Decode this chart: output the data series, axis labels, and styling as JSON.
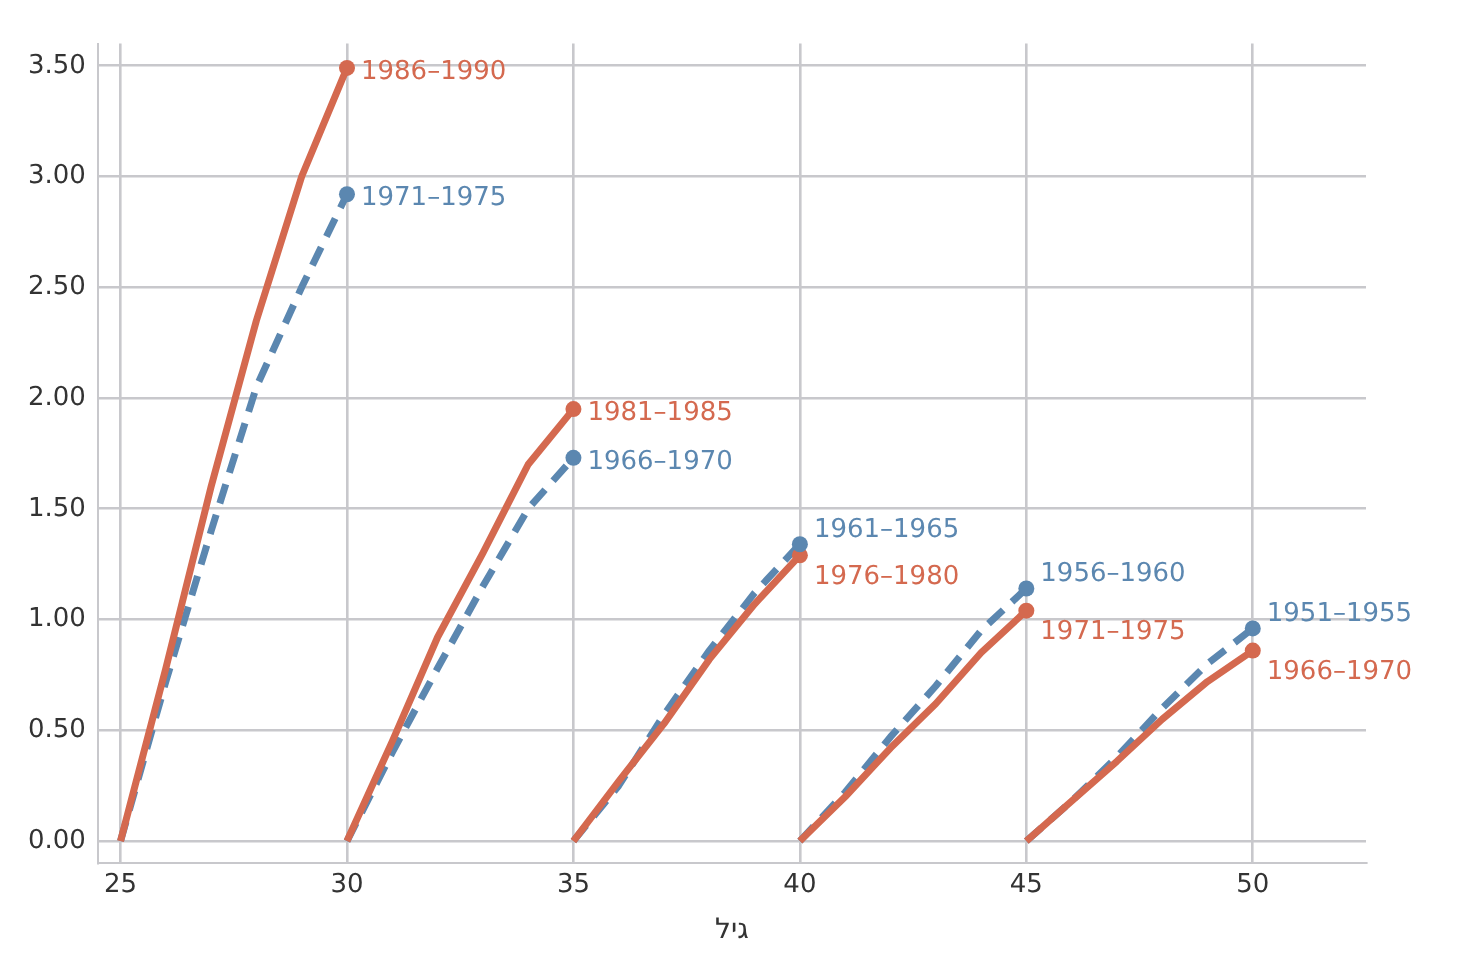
{
  "chart_data": {
    "type": "line",
    "xlabel": "גיל",
    "xlim": [
      24.5,
      52.5
    ],
    "ylim": [
      -0.1,
      3.6
    ],
    "xticks": [
      25,
      30,
      35,
      40,
      45,
      50
    ],
    "yticks": [
      {
        "value": 0,
        "label": "0.00"
      },
      {
        "value": 0.5,
        "label": "0.50"
      },
      {
        "value": 1,
        "label": "1.00"
      },
      {
        "value": 1.5,
        "label": "1.50"
      },
      {
        "value": 2,
        "label": "2.00"
      },
      {
        "value": 2.5,
        "label": "2.50"
      },
      {
        "value": 3,
        "label": "3.00"
      },
      {
        "value": 3.5,
        "label": "3.50"
      }
    ],
    "grid": true,
    "legend": false,
    "marker": "none",
    "series": [
      {
        "name": "1986–1990",
        "color": "#d4694f",
        "line_style": "solid",
        "x": [
          25,
          26,
          27,
          28,
          29,
          30
        ],
        "values": [
          0,
          0.78,
          1.6,
          2.35,
          3.0,
          3.49
        ]
      },
      {
        "name": "1971–1975",
        "color": "#5b87b0",
        "line_style": "dashed",
        "x": [
          25,
          26,
          27,
          28,
          29,
          30
        ],
        "values": [
          0,
          0.72,
          1.4,
          2.05,
          2.5,
          2.92
        ]
      },
      {
        "name": "1981–1985",
        "color": "#d4694f",
        "line_style": "solid",
        "x": [
          30,
          31,
          32,
          33,
          34,
          35
        ],
        "values": [
          0,
          0.45,
          0.92,
          1.3,
          1.7,
          1.95
        ]
      },
      {
        "name": "1966–1970",
        "color": "#5b87b0",
        "line_style": "dashed",
        "x": [
          30,
          31,
          32,
          33,
          34,
          35
        ],
        "values": [
          0,
          0.4,
          0.78,
          1.15,
          1.5,
          1.73
        ]
      },
      {
        "name": "1976–1980",
        "color": "#d4694f",
        "line_style": "solid",
        "x": [
          35,
          36,
          37,
          38,
          39,
          40
        ],
        "values": [
          0,
          0.27,
          0.53,
          0.82,
          1.07,
          1.29
        ]
      },
      {
        "name": "1961–1965",
        "color": "#5b87b0",
        "line_style": "dashed",
        "x": [
          35,
          36,
          37,
          38,
          39,
          40
        ],
        "values": [
          0,
          0.25,
          0.57,
          0.86,
          1.12,
          1.34
        ]
      },
      {
        "name": "1971–1975",
        "color": "#d4694f",
        "line_style": "solid",
        "x": [
          40,
          41,
          42,
          43,
          44,
          45
        ],
        "values": [
          0,
          0.2,
          0.42,
          0.62,
          0.85,
          1.04
        ]
      },
      {
        "name": "1956–1960",
        "color": "#5b87b0",
        "line_style": "dashed",
        "x": [
          40,
          41,
          42,
          43,
          44,
          45
        ],
        "values": [
          0,
          0.22,
          0.47,
          0.7,
          0.95,
          1.14
        ]
      },
      {
        "name": "1966–1970",
        "color": "#d4694f",
        "line_style": "solid",
        "x": [
          45,
          46,
          47,
          48,
          49,
          50
        ],
        "values": [
          0,
          0.18,
          0.36,
          0.55,
          0.72,
          0.86
        ]
      },
      {
        "name": "1951–1955",
        "color": "#5b87b0",
        "line_style": "dashed",
        "x": [
          45,
          46,
          47,
          48,
          49,
          50
        ],
        "values": [
          0,
          0.18,
          0.38,
          0.6,
          0.8,
          0.96
        ]
      }
    ]
  }
}
